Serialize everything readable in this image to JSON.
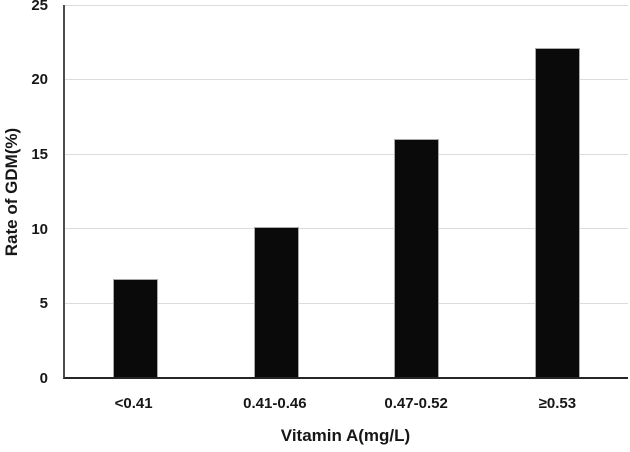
{
  "chart_data": {
    "type": "bar",
    "title": "",
    "xlabel": "Vitamin A(mg/L)",
    "ylabel": "Rate of GDM(%)",
    "categories": [
      "<0.41",
      "0.41-0.46",
      "0.47-0.52",
      "≥0.53"
    ],
    "values": [
      6.6,
      10.1,
      16,
      22.1
    ],
    "ylim": [
      0,
      25
    ],
    "yticks": [
      0,
      5,
      10,
      15,
      20,
      25
    ],
    "grid": "horizontal",
    "legend": "none",
    "bar_color": "#0a0a0a"
  },
  "colors": {
    "bar": "#0a0a0a",
    "gridline": "#dcdcdc",
    "y_axis_line": "#4d4d4d",
    "x_axis_line": "#262626",
    "text": "#171717",
    "background": "#ffffff"
  }
}
